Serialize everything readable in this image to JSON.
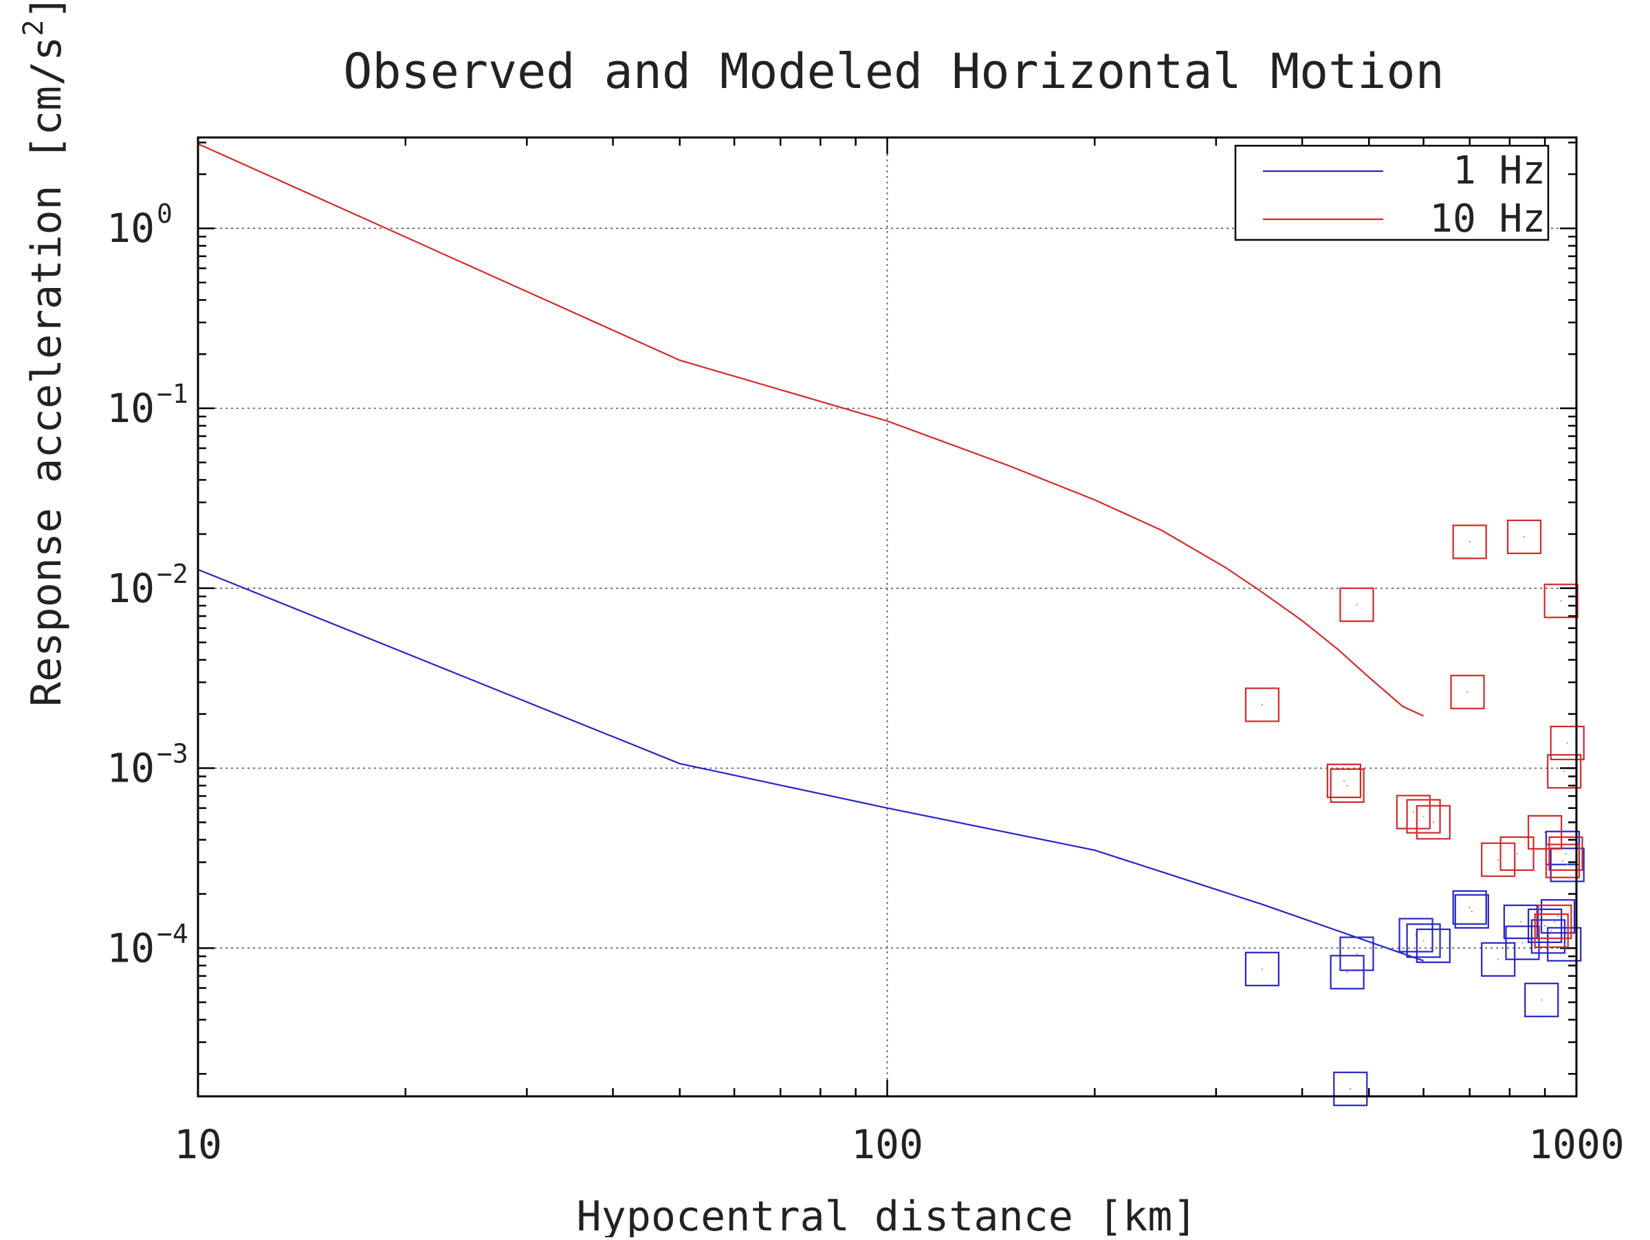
{
  "chart_data": {
    "type": "scatter",
    "title": "Observed and Modeled Horizontal Motion",
    "xlabel": "Hypocentral distance [km]",
    "ylabel_main": "Response acceleration [cm/s",
    "ylabel_sup": "2",
    "ylabel_end": "]",
    "xscale": "log",
    "yscale": "log",
    "xlim": [
      10,
      1000
    ],
    "ylim": [
      1.5e-05,
      3.2
    ],
    "grid": true,
    "legend_position": "top-right",
    "x_ticks": [
      {
        "value": 10,
        "label": "10"
      },
      {
        "value": 100,
        "label": "100"
      },
      {
        "value": 1000,
        "label": "1000"
      }
    ],
    "y_ticks": [
      {
        "value": 1,
        "base": "10",
        "exp": "0"
      },
      {
        "value": 0.1,
        "base": "10",
        "exp": "−1"
      },
      {
        "value": 0.01,
        "base": "10",
        "exp": "−2"
      },
      {
        "value": 0.001,
        "base": "10",
        "exp": "−3"
      },
      {
        "value": 0.0001,
        "base": "10",
        "exp": "−4"
      }
    ],
    "series": [
      {
        "name": "1 Hz",
        "color": "#2424c8",
        "model_line": [
          [
            10,
            0.0127
          ],
          [
            50,
            0.00106
          ],
          [
            100,
            0.0006
          ],
          [
            200,
            0.00035
          ],
          [
            350,
            0.000175
          ],
          [
            600,
            8.5e-05
          ]
        ],
        "observed": [
          [
            350,
            7.65e-05
          ],
          [
            465,
            7.35e-05
          ],
          [
            480,
            9.3e-05
          ],
          [
            470,
            1.65e-05
          ],
          [
            585,
            0.000118
          ],
          [
            600,
            0.00011
          ],
          [
            620,
            0.000103
          ],
          [
            700,
            0.000168
          ],
          [
            705,
            0.00016
          ],
          [
            770,
            8.65e-05
          ],
          [
            830,
            0.00014
          ],
          [
            835,
            0.000107
          ],
          [
            890,
            5.15e-05
          ],
          [
            900,
            0.000133
          ],
          [
            910,
            0.000116
          ],
          [
            940,
            0.00015
          ],
          [
            960,
            0.000105
          ],
          [
            955,
            0.00036
          ],
          [
            970,
            0.00029
          ]
        ]
      },
      {
        "name": "10 Hz",
        "color": "#d42828",
        "model_line": [
          [
            10,
            2.95
          ],
          [
            50,
            0.185
          ],
          [
            100,
            0.085
          ],
          [
            150,
            0.048
          ],
          [
            200,
            0.031
          ],
          [
            250,
            0.021
          ],
          [
            310,
            0.013
          ],
          [
            350,
            0.0095
          ],
          [
            400,
            0.0066
          ],
          [
            450,
            0.0046
          ],
          [
            500,
            0.0032
          ],
          [
            560,
            0.0022
          ],
          [
            600,
            0.00195
          ]
        ],
        "observed": [
          [
            350,
            0.00225
          ],
          [
            460,
            0.00085
          ],
          [
            465,
            0.0008
          ],
          [
            480,
            0.0081
          ],
          [
            580,
            0.00057
          ],
          [
            600,
            0.00054
          ],
          [
            620,
            0.0005
          ],
          [
            700,
            0.0181
          ],
          [
            695,
            0.00265
          ],
          [
            770,
            0.00031
          ],
          [
            820,
            0.000335
          ],
          [
            840,
            0.0193
          ],
          [
            900,
            0.00044
          ],
          [
            920,
            0.000125
          ],
          [
            930,
            0.00014
          ],
          [
            950,
            0.0085
          ],
          [
            960,
            0.00096
          ],
          [
            970,
            0.00138
          ],
          [
            965,
            0.000335
          ],
          [
            955,
            0.000305
          ]
        ]
      }
    ]
  }
}
